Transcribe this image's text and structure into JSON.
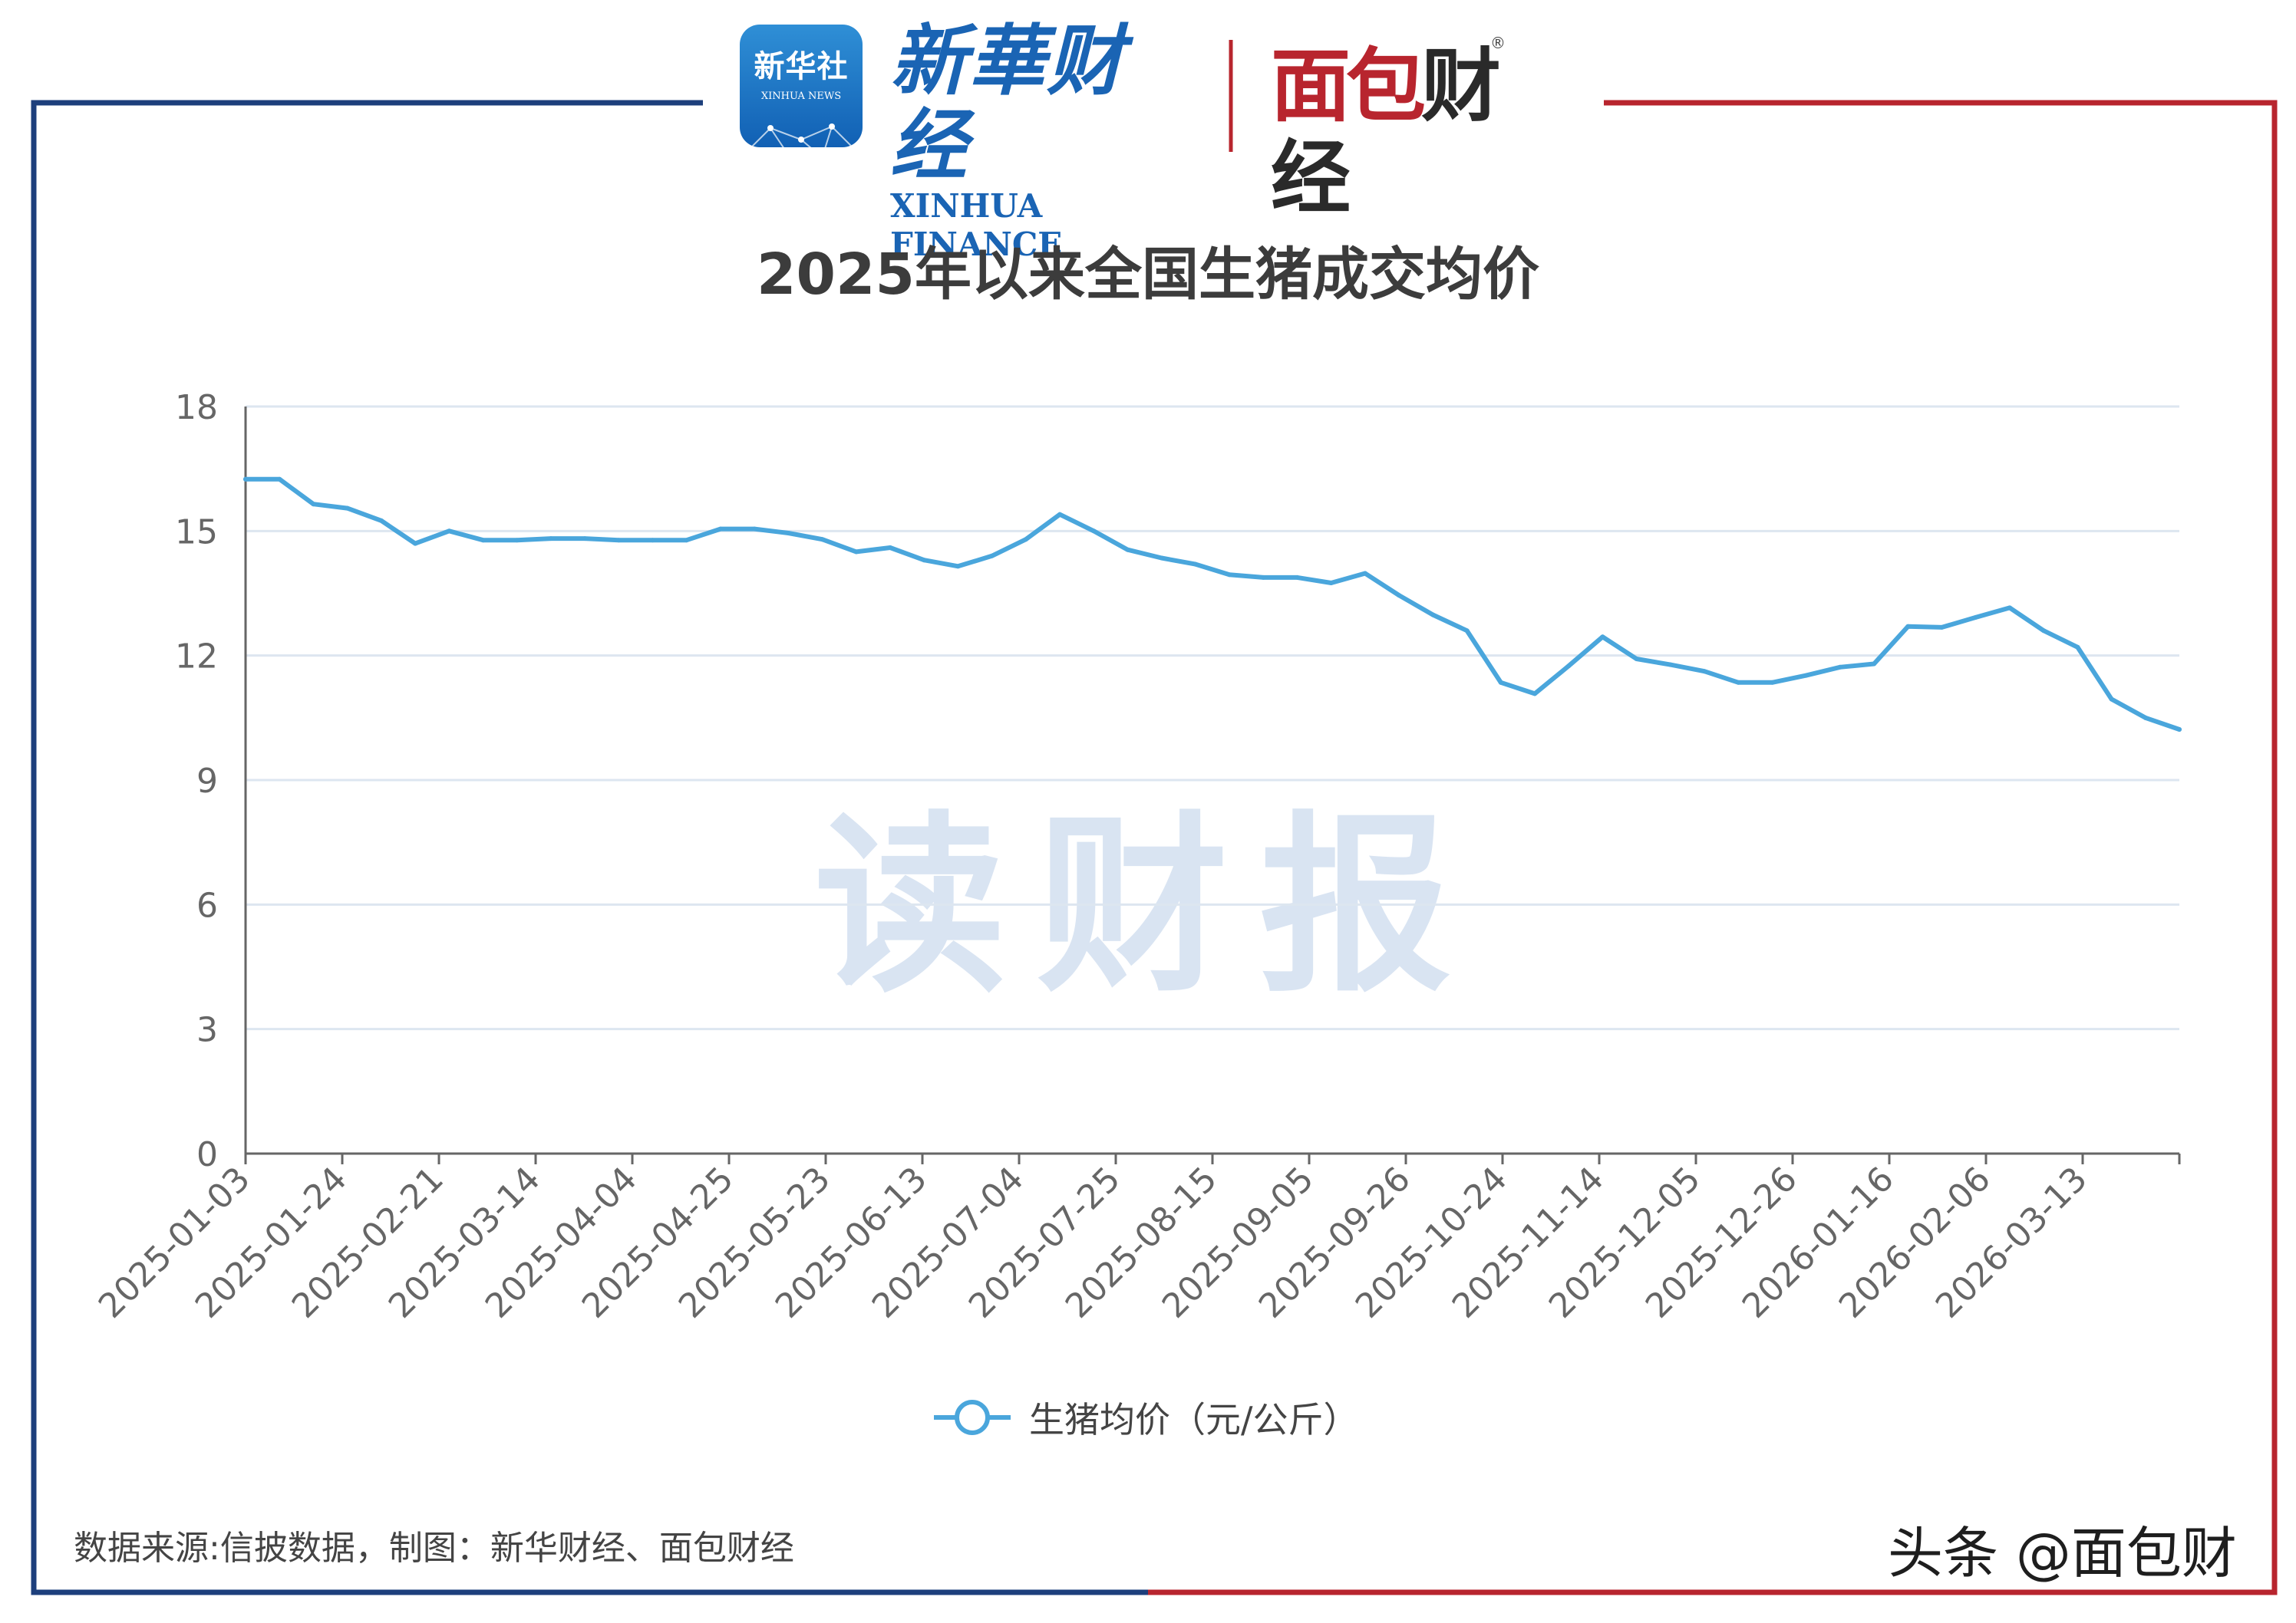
{
  "header": {
    "badge_cn": "新华社",
    "badge_en": "XINHUA NEWS",
    "brand_cn": "新華财经",
    "brand_en": "XINHUA FINANCE",
    "partner_red": "面包",
    "partner_dark": "财经",
    "registered_mark": "®"
  },
  "colors": {
    "line": "#4aa6dc",
    "frame_left": "#1d3f7c",
    "frame_right": "#b8252e",
    "grid": "#dde6f0",
    "axis": "#666666",
    "tick_label": "#666666"
  },
  "watermark": "读财报",
  "footer": {
    "source": "数据来源:信披数据，制图：新华财经、面包财经",
    "toutiao": "头条 @面包财"
  },
  "chart_data": {
    "type": "line",
    "title": "2025年以来全国生猪成交均价",
    "xlabel": "",
    "ylabel": "",
    "ylim": [
      0,
      18
    ],
    "yticks": [
      0,
      3,
      6,
      9,
      12,
      15,
      18
    ],
    "grid": true,
    "legend_position": "bottom-center",
    "x_tick_labels": [
      "2025-01-03",
      "2025-01-24",
      "2025-02-21",
      "2025-03-14",
      "2025-04-04",
      "2025-04-25",
      "2025-05-23",
      "2025-06-13",
      "2025-07-04",
      "2025-07-25",
      "2025-08-15",
      "2025-09-05",
      "2025-09-26",
      "2025-10-24",
      "2025-11-14",
      "2025-12-05",
      "2025-12-26",
      "2026-01-16",
      "2026-02-06",
      "2026-03-13"
    ],
    "series": [
      {
        "name": "生猪均价（元/公斤）",
        "values": [
          16.25,
          16.25,
          15.65,
          15.55,
          15.25,
          14.7,
          15.0,
          14.78,
          14.78,
          14.82,
          14.82,
          14.78,
          14.78,
          14.78,
          15.05,
          15.05,
          14.95,
          14.8,
          14.5,
          14.6,
          14.3,
          14.15,
          14.4,
          14.8,
          15.4,
          15.0,
          14.55,
          14.35,
          14.2,
          13.95,
          13.88,
          13.88,
          13.75,
          13.98,
          13.45,
          12.98,
          12.6,
          11.35,
          11.08,
          11.75,
          12.45,
          11.92,
          11.78,
          11.62,
          11.35,
          11.35,
          11.52,
          11.72,
          11.8,
          12.7,
          12.68,
          12.92,
          13.15,
          12.6,
          12.2,
          10.95,
          10.5,
          10.22
        ]
      }
    ]
  }
}
